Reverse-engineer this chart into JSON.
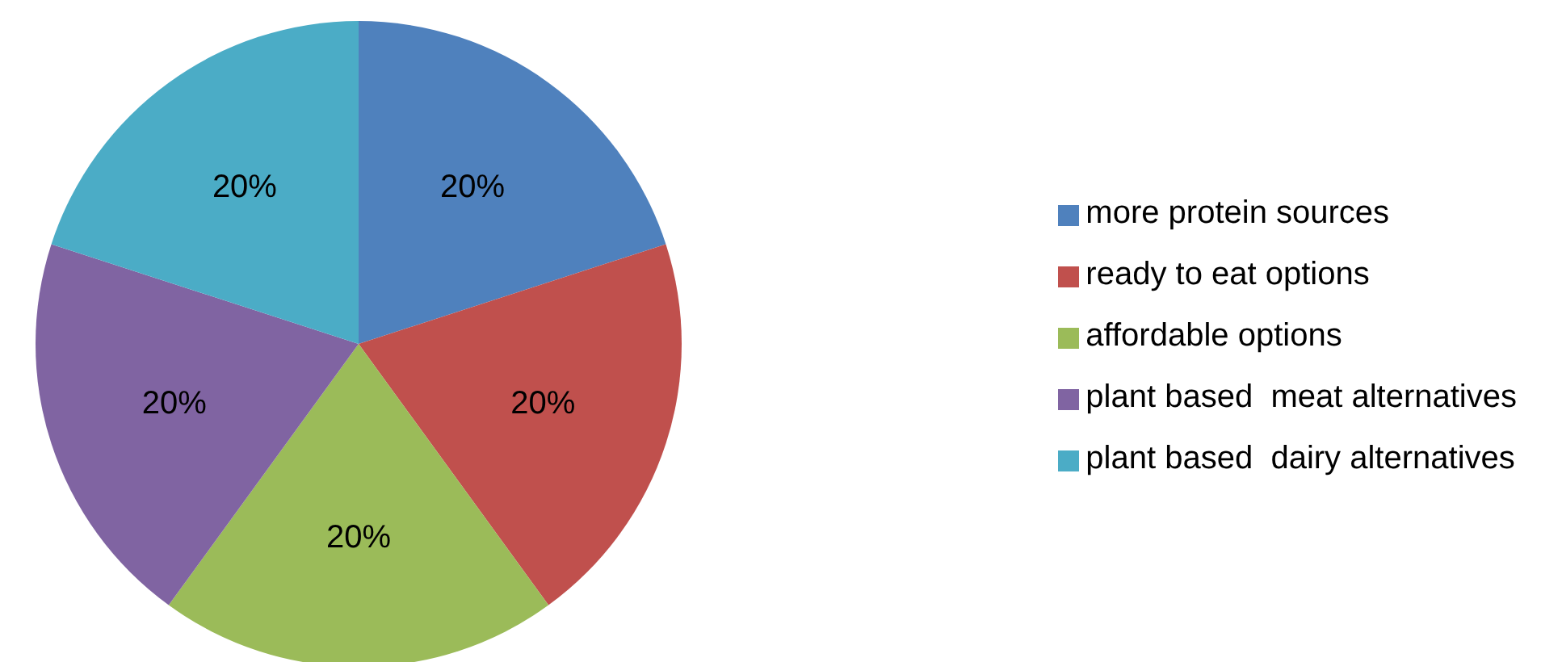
{
  "chart_data": {
    "type": "pie",
    "categories": [
      "more protein sources",
      "ready to eat options",
      "affordable options",
      "plant based  meat alternatives",
      "plant based  dairy alternatives"
    ],
    "values": [
      20,
      20,
      20,
      20,
      20
    ],
    "colors": [
      "#4f81bd",
      "#c0504d",
      "#9bbb59",
      "#8064a2",
      "#4bacc6"
    ],
    "value_labels": [
      "20%",
      "20%",
      "20%",
      "20%",
      "20%"
    ],
    "legend": "right"
  }
}
